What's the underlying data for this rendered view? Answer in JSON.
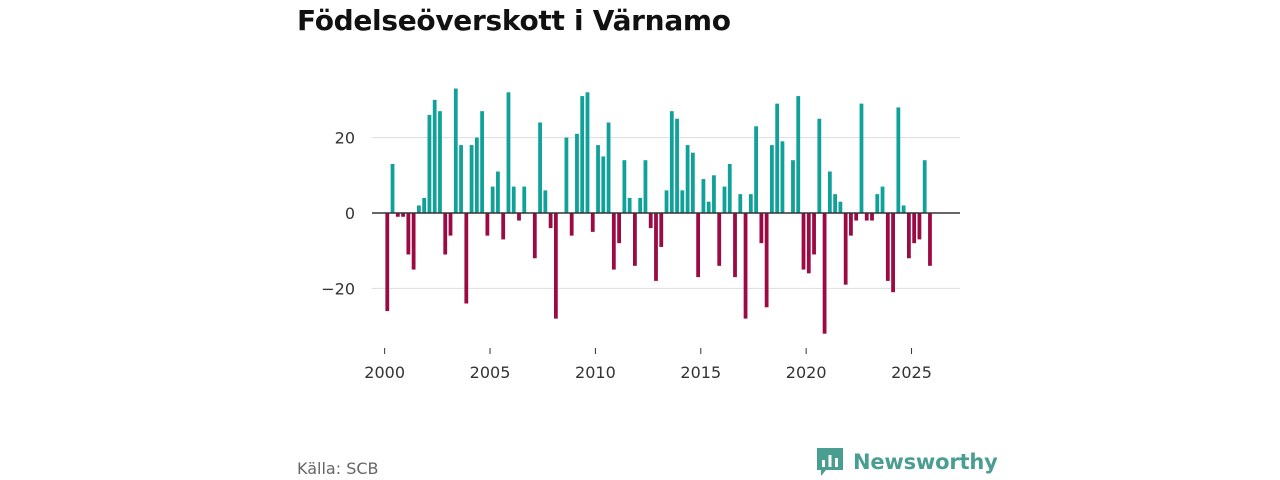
{
  "title": "Födelseöverskott i Värnamo",
  "source": "Källa: SCB",
  "brand": {
    "name": "Newsworthy",
    "icon": "bar-chart-logo-icon"
  },
  "colors": {
    "positive": "#0fa19a",
    "negative": "#9b0a43",
    "grid": "#dddddd",
    "zero": "#333333",
    "brand": "#4a9d91"
  },
  "chart_data": {
    "type": "bar",
    "title": "Födelseöverskott i Värnamo",
    "xlabel": "",
    "ylabel": "",
    "ylim": [
      -35,
      35
    ],
    "xlim": [
      1999.4,
      2027.3
    ],
    "yticks": [
      20,
      0,
      -20
    ],
    "ytick_labels": [
      "20",
      "0",
      "−20"
    ],
    "xticks": [
      2000,
      2005,
      2010,
      2015,
      2020,
      2025
    ],
    "xtick_labels": [
      "2000",
      "2005",
      "2010",
      "2015",
      "2020",
      "2025"
    ],
    "grid": true,
    "bar_interval": "quarter",
    "start": 2000,
    "values": [
      -26,
      13,
      -1,
      -1,
      -11,
      -15,
      2,
      4,
      26,
      30,
      27,
      -11,
      -6,
      33,
      18,
      -24,
      18,
      20,
      27,
      -6,
      7,
      11,
      -7,
      32,
      7,
      -2,
      7,
      0,
      -12,
      24,
      6,
      -4,
      -28,
      0,
      20,
      -6,
      21,
      31,
      32,
      -5,
      18,
      15,
      24,
      -15,
      -8,
      14,
      4,
      -14,
      4,
      14,
      -4,
      -18,
      -9,
      6,
      27,
      25,
      6,
      18,
      16,
      -17,
      9,
      3,
      10,
      -14,
      7,
      13,
      -17,
      5,
      -28,
      5,
      23,
      -8,
      -25,
      18,
      29,
      19,
      0,
      14,
      31,
      -15,
      -16,
      -11,
      25,
      -32,
      11,
      5,
      3,
      -19,
      -6,
      -2,
      29,
      -2,
      -2,
      5,
      7,
      -18,
      -21,
      28,
      2,
      -12,
      -8,
      -7,
      14,
      -14
    ]
  }
}
